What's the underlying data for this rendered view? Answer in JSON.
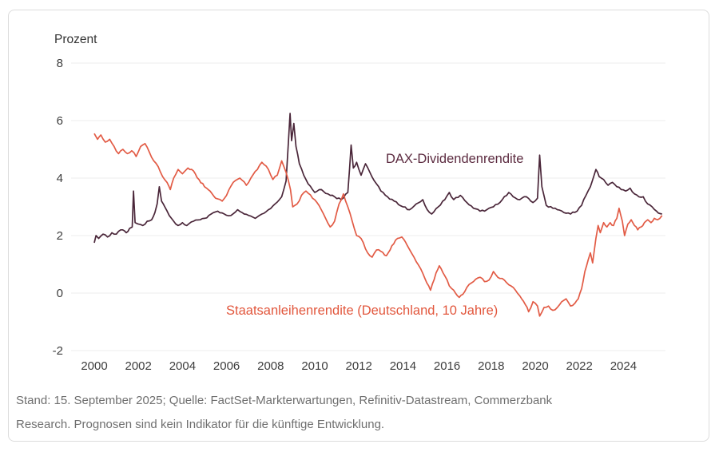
{
  "colors": {
    "dax_line": "#4a2639",
    "dax_label": "#5c2b40",
    "bond_line": "#e25b45",
    "bond_label": "#e2573d",
    "grid": "#ececec",
    "tick_text": "#3d3d3d",
    "footer_text": "#6f6f6f",
    "card_border": "#dcdcdc"
  },
  "footer": {
    "line1": "Stand: 15. September 2025; Quelle: FactSet-Markterwartungen, Refinitiv-Datastream, Commerzbank",
    "line2": "Research. Prognosen sind kein Indikator für die künftige Entwicklung."
  },
  "chart_data": {
    "type": "line",
    "title": "Prozent",
    "unit_label": "Prozent",
    "xlabel": "",
    "ylabel": "",
    "ylim": [
      -2,
      8
    ],
    "y_ticks": [
      8,
      6,
      4,
      2,
      0,
      -2
    ],
    "x_ticks": [
      2000,
      2002,
      2004,
      2006,
      2008,
      2010,
      2012,
      2014,
      2016,
      2018,
      2020,
      2022,
      2024
    ],
    "x_range": [
      2000,
      2025.75
    ],
    "grid": "horizontal-only",
    "legend_position": "inline-annotations",
    "series": [
      {
        "name": "DAX-Dividendenrendite",
        "points": [
          [
            2000.0,
            1.75
          ],
          [
            2000.08,
            2.0
          ],
          [
            2000.2,
            1.9
          ],
          [
            2000.4,
            2.05
          ],
          [
            2000.6,
            1.95
          ],
          [
            2000.8,
            2.1
          ],
          [
            2001.0,
            2.05
          ],
          [
            2001.2,
            2.2
          ],
          [
            2001.45,
            2.1
          ],
          [
            2001.6,
            2.25
          ],
          [
            2001.72,
            2.3
          ],
          [
            2001.78,
            3.55
          ],
          [
            2001.85,
            2.45
          ],
          [
            2002.0,
            2.4
          ],
          [
            2002.2,
            2.35
          ],
          [
            2002.4,
            2.5
          ],
          [
            2002.6,
            2.55
          ],
          [
            2002.75,
            2.8
          ],
          [
            2002.85,
            3.1
          ],
          [
            2002.95,
            3.7
          ],
          [
            2003.05,
            3.2
          ],
          [
            2003.2,
            3.0
          ],
          [
            2003.4,
            2.7
          ],
          [
            2003.6,
            2.5
          ],
          [
            2003.8,
            2.35
          ],
          [
            2004.0,
            2.45
          ],
          [
            2004.2,
            2.35
          ],
          [
            2004.5,
            2.5
          ],
          [
            2004.8,
            2.55
          ],
          [
            2005.0,
            2.6
          ],
          [
            2005.3,
            2.75
          ],
          [
            2005.6,
            2.85
          ],
          [
            2005.9,
            2.75
          ],
          [
            2006.2,
            2.7
          ],
          [
            2006.5,
            2.9
          ],
          [
            2006.8,
            2.75
          ],
          [
            2007.0,
            2.7
          ],
          [
            2007.3,
            2.6
          ],
          [
            2007.6,
            2.75
          ],
          [
            2007.9,
            2.9
          ],
          [
            2008.2,
            3.1
          ],
          [
            2008.5,
            3.35
          ],
          [
            2008.7,
            3.9
          ],
          [
            2008.8,
            5.2
          ],
          [
            2008.88,
            6.25
          ],
          [
            2008.95,
            5.3
          ],
          [
            2009.05,
            5.9
          ],
          [
            2009.15,
            5.1
          ],
          [
            2009.3,
            4.5
          ],
          [
            2009.5,
            4.1
          ],
          [
            2009.7,
            3.8
          ],
          [
            2010.0,
            3.5
          ],
          [
            2010.3,
            3.6
          ],
          [
            2010.6,
            3.45
          ],
          [
            2010.9,
            3.35
          ],
          [
            2011.2,
            3.25
          ],
          [
            2011.5,
            3.5
          ],
          [
            2011.65,
            5.15
          ],
          [
            2011.75,
            4.35
          ],
          [
            2011.9,
            4.55
          ],
          [
            2012.1,
            4.1
          ],
          [
            2012.3,
            4.5
          ],
          [
            2012.5,
            4.2
          ],
          [
            2012.8,
            3.8
          ],
          [
            2013.0,
            3.55
          ],
          [
            2013.3,
            3.35
          ],
          [
            2013.6,
            3.2
          ],
          [
            2014.0,
            3.0
          ],
          [
            2014.3,
            2.9
          ],
          [
            2014.6,
            3.1
          ],
          [
            2014.9,
            3.25
          ],
          [
            2015.1,
            2.9
          ],
          [
            2015.3,
            2.75
          ],
          [
            2015.6,
            3.0
          ],
          [
            2015.9,
            3.25
          ],
          [
            2016.1,
            3.5
          ],
          [
            2016.3,
            3.25
          ],
          [
            2016.6,
            3.4
          ],
          [
            2016.9,
            3.15
          ],
          [
            2017.2,
            2.95
          ],
          [
            2017.5,
            2.85
          ],
          [
            2017.8,
            2.9
          ],
          [
            2018.1,
            3.0
          ],
          [
            2018.4,
            3.15
          ],
          [
            2018.8,
            3.5
          ],
          [
            2019.0,
            3.35
          ],
          [
            2019.3,
            3.25
          ],
          [
            2019.6,
            3.35
          ],
          [
            2019.9,
            3.15
          ],
          [
            2020.1,
            3.3
          ],
          [
            2020.2,
            4.8
          ],
          [
            2020.3,
            3.7
          ],
          [
            2020.5,
            3.05
          ],
          [
            2020.8,
            2.95
          ],
          [
            2021.0,
            2.9
          ],
          [
            2021.3,
            2.8
          ],
          [
            2021.6,
            2.75
          ],
          [
            2021.9,
            2.85
          ],
          [
            2022.1,
            3.05
          ],
          [
            2022.3,
            3.4
          ],
          [
            2022.5,
            3.7
          ],
          [
            2022.75,
            4.3
          ],
          [
            2022.9,
            4.05
          ],
          [
            2023.1,
            3.95
          ],
          [
            2023.3,
            3.75
          ],
          [
            2023.5,
            3.85
          ],
          [
            2023.7,
            3.7
          ],
          [
            2023.9,
            3.6
          ],
          [
            2024.1,
            3.55
          ],
          [
            2024.3,
            3.65
          ],
          [
            2024.5,
            3.45
          ],
          [
            2024.7,
            3.35
          ],
          [
            2024.9,
            3.35
          ],
          [
            2025.1,
            3.1
          ],
          [
            2025.3,
            3.0
          ],
          [
            2025.5,
            2.85
          ],
          [
            2025.75,
            2.75
          ]
        ]
      },
      {
        "name": "Staatsanleihenrendite (Deutschland, 10 Jahre)",
        "points": [
          [
            2000.0,
            5.55
          ],
          [
            2000.15,
            5.35
          ],
          [
            2000.3,
            5.5
          ],
          [
            2000.5,
            5.25
          ],
          [
            2000.7,
            5.35
          ],
          [
            2000.9,
            5.1
          ],
          [
            2001.1,
            4.85
          ],
          [
            2001.3,
            5.0
          ],
          [
            2001.5,
            4.85
          ],
          [
            2001.7,
            4.95
          ],
          [
            2001.9,
            4.75
          ],
          [
            2002.1,
            5.1
          ],
          [
            2002.3,
            5.2
          ],
          [
            2002.5,
            4.9
          ],
          [
            2002.7,
            4.6
          ],
          [
            2002.9,
            4.4
          ],
          [
            2003.1,
            4.05
          ],
          [
            2003.3,
            3.85
          ],
          [
            2003.45,
            3.6
          ],
          [
            2003.6,
            4.0
          ],
          [
            2003.8,
            4.3
          ],
          [
            2004.0,
            4.15
          ],
          [
            2004.25,
            4.35
          ],
          [
            2004.5,
            4.25
          ],
          [
            2004.75,
            3.95
          ],
          [
            2005.0,
            3.7
          ],
          [
            2005.25,
            3.55
          ],
          [
            2005.5,
            3.3
          ],
          [
            2005.8,
            3.2
          ],
          [
            2006.0,
            3.4
          ],
          [
            2006.3,
            3.85
          ],
          [
            2006.6,
            4.0
          ],
          [
            2006.9,
            3.75
          ],
          [
            2007.1,
            4.0
          ],
          [
            2007.4,
            4.3
          ],
          [
            2007.6,
            4.55
          ],
          [
            2007.9,
            4.3
          ],
          [
            2008.1,
            3.95
          ],
          [
            2008.3,
            4.1
          ],
          [
            2008.5,
            4.6
          ],
          [
            2008.7,
            4.2
          ],
          [
            2008.9,
            3.6
          ],
          [
            2009.0,
            3.0
          ],
          [
            2009.2,
            3.1
          ],
          [
            2009.4,
            3.4
          ],
          [
            2009.6,
            3.55
          ],
          [
            2009.9,
            3.3
          ],
          [
            2010.1,
            3.15
          ],
          [
            2010.4,
            2.75
          ],
          [
            2010.7,
            2.3
          ],
          [
            2010.9,
            2.5
          ],
          [
            2011.1,
            3.1
          ],
          [
            2011.3,
            3.45
          ],
          [
            2011.5,
            3.0
          ],
          [
            2011.7,
            2.5
          ],
          [
            2011.9,
            2.0
          ],
          [
            2012.1,
            1.9
          ],
          [
            2012.4,
            1.4
          ],
          [
            2012.6,
            1.25
          ],
          [
            2012.8,
            1.5
          ],
          [
            2013.0,
            1.45
          ],
          [
            2013.25,
            1.3
          ],
          [
            2013.5,
            1.65
          ],
          [
            2013.75,
            1.9
          ],
          [
            2013.95,
            1.95
          ],
          [
            2014.2,
            1.65
          ],
          [
            2014.5,
            1.25
          ],
          [
            2014.8,
            0.85
          ],
          [
            2015.0,
            0.5
          ],
          [
            2015.25,
            0.1
          ],
          [
            2015.5,
            0.7
          ],
          [
            2015.65,
            0.95
          ],
          [
            2015.9,
            0.6
          ],
          [
            2016.1,
            0.25
          ],
          [
            2016.3,
            0.1
          ],
          [
            2016.55,
            -0.15
          ],
          [
            2016.8,
            0.05
          ],
          [
            2017.0,
            0.3
          ],
          [
            2017.2,
            0.4
          ],
          [
            2017.5,
            0.55
          ],
          [
            2017.7,
            0.4
          ],
          [
            2017.9,
            0.45
          ],
          [
            2018.1,
            0.75
          ],
          [
            2018.3,
            0.55
          ],
          [
            2018.6,
            0.45
          ],
          [
            2018.9,
            0.25
          ],
          [
            2019.1,
            0.1
          ],
          [
            2019.3,
            -0.1
          ],
          [
            2019.55,
            -0.4
          ],
          [
            2019.7,
            -0.65
          ],
          [
            2019.9,
            -0.3
          ],
          [
            2020.1,
            -0.45
          ],
          [
            2020.2,
            -0.8
          ],
          [
            2020.4,
            -0.5
          ],
          [
            2020.6,
            -0.45
          ],
          [
            2020.8,
            -0.6
          ],
          [
            2021.0,
            -0.5
          ],
          [
            2021.2,
            -0.3
          ],
          [
            2021.4,
            -0.2
          ],
          [
            2021.6,
            -0.45
          ],
          [
            2021.8,
            -0.35
          ],
          [
            2021.95,
            -0.2
          ],
          [
            2022.1,
            0.15
          ],
          [
            2022.25,
            0.75
          ],
          [
            2022.4,
            1.15
          ],
          [
            2022.5,
            1.4
          ],
          [
            2022.6,
            1.05
          ],
          [
            2022.75,
            1.9
          ],
          [
            2022.85,
            2.35
          ],
          [
            2022.95,
            2.1
          ],
          [
            2023.1,
            2.45
          ],
          [
            2023.25,
            2.3
          ],
          [
            2023.4,
            2.45
          ],
          [
            2023.55,
            2.35
          ],
          [
            2023.7,
            2.6
          ],
          [
            2023.8,
            2.95
          ],
          [
            2023.95,
            2.5
          ],
          [
            2024.05,
            2.0
          ],
          [
            2024.2,
            2.4
          ],
          [
            2024.35,
            2.55
          ],
          [
            2024.5,
            2.35
          ],
          [
            2024.65,
            2.2
          ],
          [
            2024.8,
            2.3
          ],
          [
            2024.95,
            2.45
          ],
          [
            2025.1,
            2.55
          ],
          [
            2025.25,
            2.45
          ],
          [
            2025.4,
            2.6
          ],
          [
            2025.55,
            2.55
          ],
          [
            2025.75,
            2.7
          ]
        ]
      }
    ],
    "annotations": [
      {
        "text": "DAX-Dividendenrendite",
        "series": 0
      },
      {
        "text": "Staatsanleihenrendite (Deutschland, 10 Jahre)",
        "series": 1
      }
    ]
  }
}
